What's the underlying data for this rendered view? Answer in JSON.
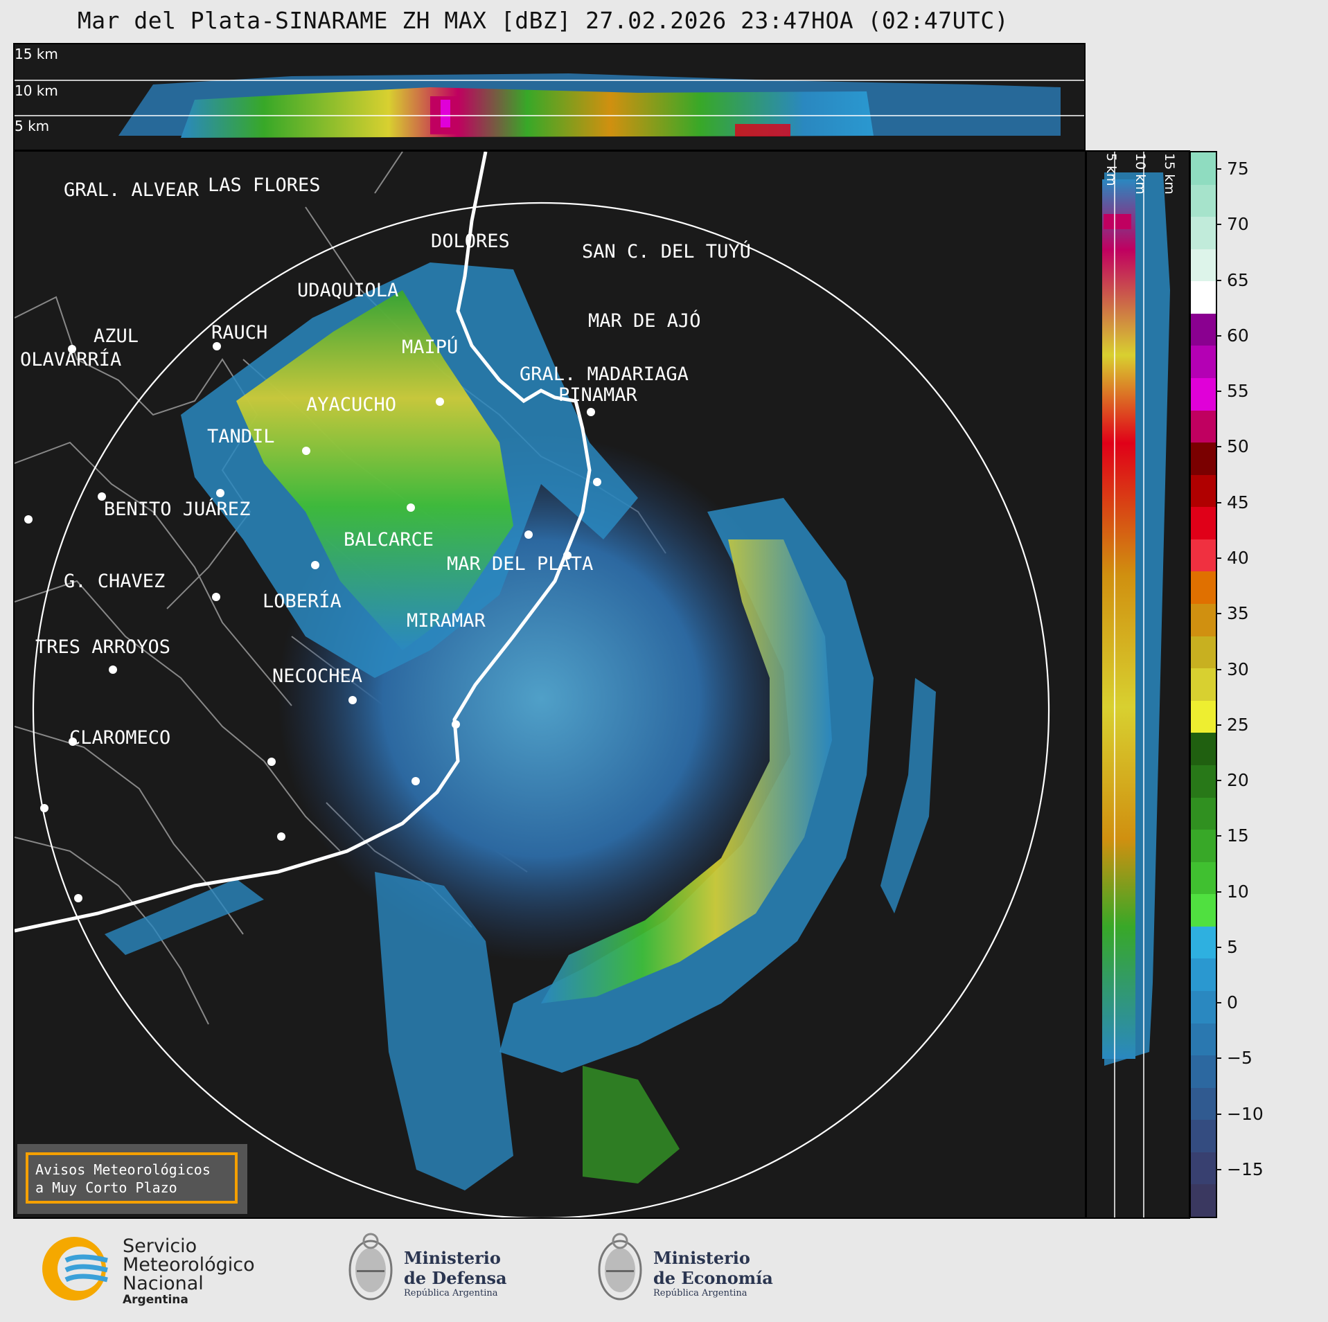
{
  "title": "Mar del Plata-SINARAME ZH MAX [dBZ] 27.02.2026 23:47HOA (02:47UTC)",
  "top_panel": {
    "height_labels": [
      "15 km",
      "10 km",
      "5 km"
    ]
  },
  "side_panel": {
    "height_labels": [
      "5 km",
      "10 km",
      "15 km"
    ]
  },
  "map": {
    "cities": [
      {
        "name": "GRAL. ALVEAR"
      },
      {
        "name": "LAS FLORES"
      },
      {
        "name": "DOLORES"
      },
      {
        "name": "SAN C. DEL TUYÚ"
      },
      {
        "name": "UDAQUIOLA"
      },
      {
        "name": "MAR DE AJÓ"
      },
      {
        "name": "AZUL"
      },
      {
        "name": "RAUCH"
      },
      {
        "name": "OLAVARRÍA"
      },
      {
        "name": "MAIPÚ"
      },
      {
        "name": "GRAL. MADARIAGA"
      },
      {
        "name": "PINAMAR"
      },
      {
        "name": "AYACUCHO"
      },
      {
        "name": "TANDIL"
      },
      {
        "name": "BENITO JUÁREZ"
      },
      {
        "name": "BALCARCE"
      },
      {
        "name": "MAR DEL PLATA"
      },
      {
        "name": "G. CHAVEZ"
      },
      {
        "name": "LOBERÍA"
      },
      {
        "name": "MIRAMAR"
      },
      {
        "name": "TRES ARROYOS"
      },
      {
        "name": "NECOCHEA"
      },
      {
        "name": "CLAROMECO"
      }
    ]
  },
  "colorbar": {
    "unit": "dBZ",
    "ticks": [
      "75",
      "70",
      "65",
      "60",
      "55",
      "50",
      "45",
      "40",
      "35",
      "30",
      "25",
      "20",
      "15",
      "10",
      "5",
      "0",
      "−5",
      "−10",
      "−15"
    ],
    "colors": [
      "#8fdcc0",
      "#a6e3cb",
      "#c1ebda",
      "#ddf4ea",
      "#ffffff",
      "#8a0090",
      "#b400b4",
      "#e000d8",
      "#c00060",
      "#7a0000",
      "#b00000",
      "#e00018",
      "#f03040",
      "#e07000",
      "#d09010",
      "#c8b020",
      "#d8d030",
      "#eeee30",
      "#206010",
      "#287818",
      "#309020",
      "#38a828",
      "#40c030",
      "#50e040",
      "#2eb0e0",
      "#2a98d0",
      "#2a88c0",
      "#2a78b0",
      "#2c68a0",
      "#305a90",
      "#344c80",
      "#384070",
      "#3a3860"
    ]
  },
  "warning_box": {
    "line1": "Avisos Meteorológicos",
    "line2": "a Muy Corto Plazo"
  },
  "logos": {
    "smn": {
      "line1": "Servicio",
      "line2": "Meteorológico",
      "line3": "Nacional",
      "line4": "Argentina"
    },
    "defensa": {
      "line1": "Ministerio",
      "line2": "de Defensa",
      "line3": "República Argentina"
    },
    "economia": {
      "line1": "Ministerio",
      "line2": "de Economía",
      "line3": "República Argentina"
    }
  }
}
